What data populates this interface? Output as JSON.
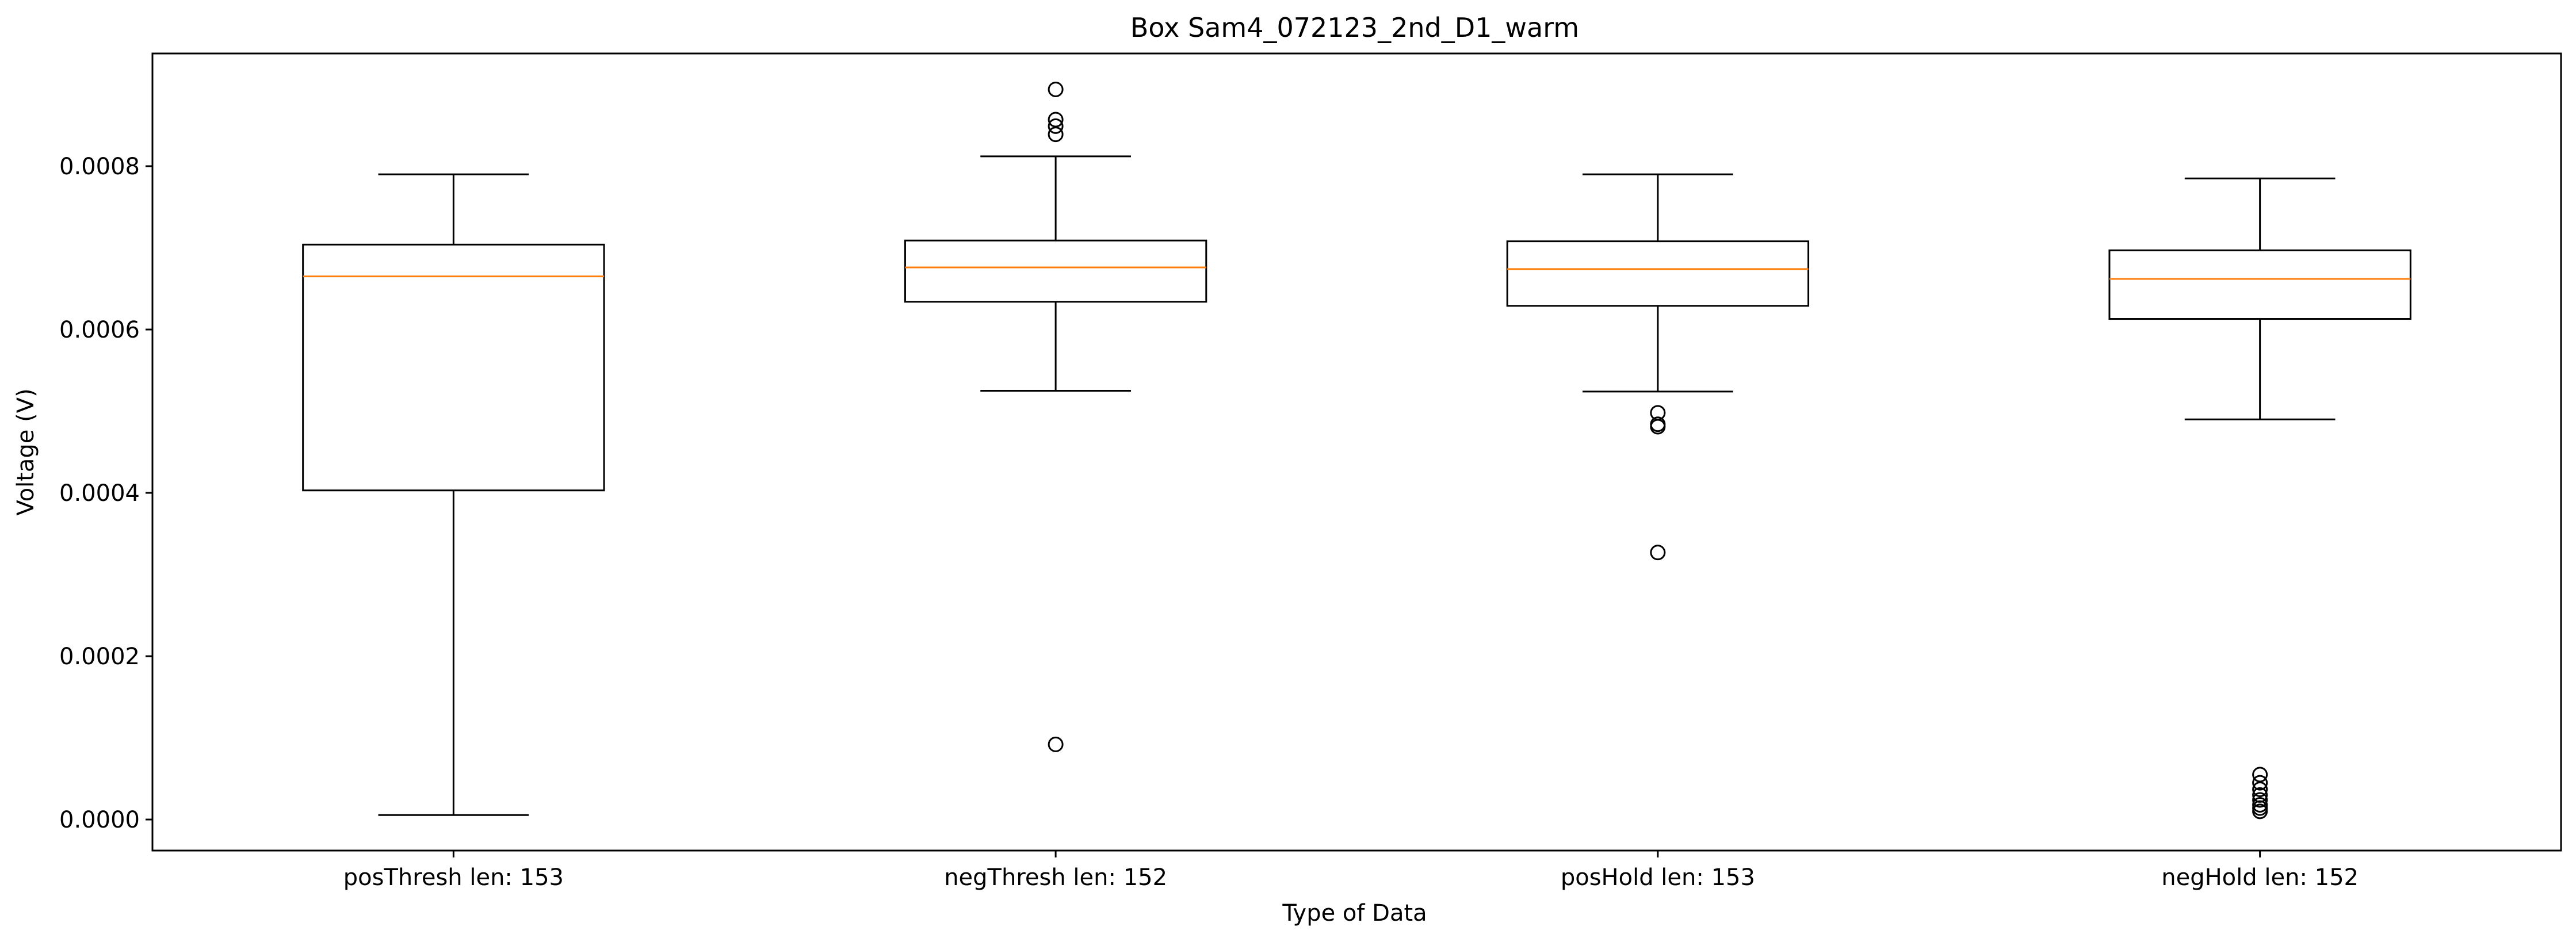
{
  "chart_data": {
    "type": "box",
    "title": "Box Sam4_072123_2nd_D1_warm",
    "xlabel": "Type of Data",
    "ylabel": "Voltage (V)",
    "ylim": [
      -3.8e-05,
      0.000938
    ],
    "yticks": [
      {
        "value": 0.0,
        "label": "0.0000"
      },
      {
        "value": 0.0002,
        "label": "0.0002"
      },
      {
        "value": 0.0004,
        "label": "0.0004"
      },
      {
        "value": 0.0006,
        "label": "0.0006"
      },
      {
        "value": 0.0008,
        "label": "0.0008"
      }
    ],
    "grid": false,
    "colors": {
      "box": "#000000",
      "median": "#ff7f0e"
    },
    "boxes": [
      {
        "label": "posThresh len: 153",
        "whisker_low": 5.5e-06,
        "q1": 0.000403,
        "median": 0.000665,
        "q3": 0.000704,
        "whisker_high": 0.00079,
        "outliers": []
      },
      {
        "label": "negThresh len: 152",
        "whisker_low": 0.000525,
        "q1": 0.000634,
        "median": 0.000676,
        "q3": 0.000709,
        "whisker_high": 0.000812,
        "outliers": [
          9.2e-05,
          0.000839,
          0.000849,
          0.000857,
          0.000894
        ]
      },
      {
        "label": "posHold len: 153",
        "whisker_low": 0.000524,
        "q1": 0.000629,
        "median": 0.000674,
        "q3": 0.000708,
        "whisker_high": 0.00079,
        "outliers": [
          0.000327,
          0.000481,
          0.000484,
          0.000498
        ]
      },
      {
        "label": "negHold len: 152",
        "whisker_low": 0.00049,
        "q1": 0.000613,
        "median": 0.000662,
        "q3": 0.000697,
        "whisker_high": 0.000785,
        "outliers": [
          1e-05,
          1.4e-05,
          1.8e-05,
          2.4e-05,
          3e-05,
          3.7e-05,
          4.5e-05,
          5.5e-05
        ]
      }
    ]
  }
}
